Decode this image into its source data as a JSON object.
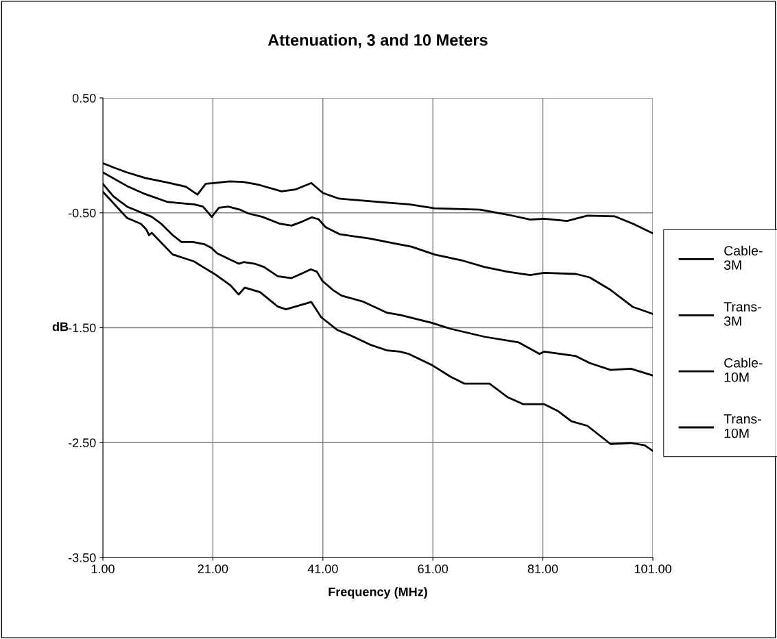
{
  "chart_data": {
    "type": "line",
    "title": "Attenuation, 3 and 10 Meters",
    "xlabel": "Frequency (MHz)",
    "ylabel": "dB",
    "xlim": [
      1,
      101
    ],
    "ylim": [
      -3.5,
      0.5
    ],
    "xticks": [
      {
        "value": 1,
        "label": "1.00"
      },
      {
        "value": 21,
        "label": "21.00"
      },
      {
        "value": 41,
        "label": "41.00"
      },
      {
        "value": 61,
        "label": "61.00"
      },
      {
        "value": 81,
        "label": "81.00"
      },
      {
        "value": 101,
        "label": "101.00"
      }
    ],
    "yticks": [
      {
        "value": -3.5,
        "label": "-3.50"
      },
      {
        "value": -2.5,
        "label": "-2.50"
      },
      {
        "value": -1.5,
        "label": "-1.50"
      },
      {
        "value": -0.5,
        "label": "-0.50"
      },
      {
        "value": 0.5,
        "label": "0.50"
      }
    ],
    "grid": true,
    "legend": "right",
    "marker": "none",
    "line_style": "solid",
    "series": [
      {
        "name": "Cable-3M",
        "color": "#000000",
        "x": [
          1,
          3.1,
          5.4,
          8.7,
          12.8,
          16.1,
          18.2,
          19.7,
          21.1,
          24,
          26.5,
          29.4,
          33.5,
          36,
          38.9,
          41,
          43.9,
          52.7,
          56.7,
          61.3,
          69.6,
          74.5,
          78.7,
          81.2,
          85.4,
          89.1,
          94.1,
          97.4,
          101
        ],
        "values": [
          -0.068,
          -0.108,
          -0.148,
          -0.197,
          -0.237,
          -0.273,
          -0.341,
          -0.247,
          -0.241,
          -0.227,
          -0.231,
          -0.257,
          -0.313,
          -0.297,
          -0.241,
          -0.327,
          -0.376,
          -0.412,
          -0.426,
          -0.46,
          -0.472,
          -0.515,
          -0.559,
          -0.551,
          -0.571,
          -0.525,
          -0.531,
          -0.595,
          -0.679
        ]
      },
      {
        "name": "Trans-3M",
        "color": "#000000",
        "x": [
          1,
          5.4,
          8.7,
          12.8,
          17.6,
          19.2,
          20.8,
          22.1,
          23.8,
          25.9,
          27.5,
          30,
          33.2,
          35.3,
          37.3,
          39,
          40.2,
          41.5,
          44,
          46.5,
          49.6,
          53.8,
          57.1,
          61.3,
          66.2,
          70.4,
          74.5,
          78.7,
          81.2,
          87,
          89.5,
          93.3,
          97.4,
          101
        ],
        "values": [
          -0.148,
          -0.267,
          -0.337,
          -0.406,
          -0.426,
          -0.446,
          -0.535,
          -0.456,
          -0.446,
          -0.472,
          -0.506,
          -0.535,
          -0.595,
          -0.611,
          -0.575,
          -0.539,
          -0.555,
          -0.625,
          -0.685,
          -0.704,
          -0.724,
          -0.764,
          -0.794,
          -0.863,
          -0.913,
          -0.972,
          -1.012,
          -1.042,
          -1.022,
          -1.032,
          -1.062,
          -1.171,
          -1.32,
          -1.38
        ]
      },
      {
        "name": "Cable-10M",
        "color": "#000000",
        "x": [
          1,
          2.9,
          5.4,
          7.9,
          9.9,
          11.6,
          13.7,
          15.3,
          17.4,
          19.5,
          20.7,
          21.8,
          25.7,
          26.6,
          28.6,
          30.3,
          32.8,
          35.3,
          37,
          38.8,
          39.9,
          40.9,
          42.8,
          44.4,
          48.2,
          52.7,
          55.2,
          60.9,
          64.2,
          70.4,
          76.6,
          80.4,
          81.2,
          87,
          89.5,
          93.3,
          97,
          101
        ],
        "values": [
          -0.247,
          -0.356,
          -0.446,
          -0.496,
          -0.535,
          -0.595,
          -0.694,
          -0.754,
          -0.754,
          -0.774,
          -0.804,
          -0.853,
          -0.943,
          -0.929,
          -0.943,
          -0.972,
          -1.052,
          -1.068,
          -1.032,
          -0.992,
          -1.012,
          -1.092,
          -1.171,
          -1.221,
          -1.271,
          -1.37,
          -1.39,
          -1.459,
          -1.509,
          -1.579,
          -1.628,
          -1.728,
          -1.708,
          -1.747,
          -1.807,
          -1.867,
          -1.857,
          -1.916
        ]
      },
      {
        "name": "Trans-10M",
        "color": "#000000",
        "x": [
          1,
          5.4,
          7.9,
          8.9,
          9.4,
          9.9,
          13.7,
          17.6,
          19.2,
          21.3,
          24.2,
          25.7,
          26.8,
          29.6,
          32.8,
          34.3,
          38.9,
          40.7,
          43.6,
          46.1,
          49.6,
          52.7,
          55,
          56.6,
          60.9,
          64.2,
          66.7,
          71.3,
          74.6,
          77.4,
          81.2,
          83.7,
          86.2,
          89.1,
          93.3,
          97,
          99.5,
          101
        ],
        "values": [
          -0.317,
          -0.545,
          -0.595,
          -0.645,
          -0.694,
          -0.674,
          -0.863,
          -0.923,
          -0.972,
          -1.032,
          -1.131,
          -1.211,
          -1.151,
          -1.191,
          -1.316,
          -1.34,
          -1.276,
          -1.409,
          -1.519,
          -1.569,
          -1.648,
          -1.698,
          -1.708,
          -1.728,
          -1.827,
          -1.926,
          -1.986,
          -1.986,
          -2.105,
          -2.165,
          -2.165,
          -2.224,
          -2.314,
          -2.354,
          -2.512,
          -2.503,
          -2.523,
          -2.572
        ]
      }
    ]
  }
}
